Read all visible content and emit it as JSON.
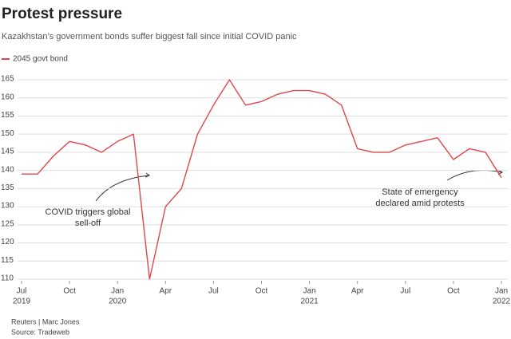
{
  "chart_data": {
    "type": "line",
    "title": "Protest pressure",
    "subtitle": "Kazakhstan’s government bonds suffer biggest fall since initial COVID panic",
    "x": [
      "2019-07",
      "2019-08",
      "2019-09",
      "2019-10",
      "2019-11",
      "2019-12",
      "2020-01",
      "2020-02",
      "2020-03",
      "2020-04",
      "2020-05",
      "2020-06",
      "2020-07",
      "2020-08",
      "2020-09",
      "2020-10",
      "2020-11",
      "2020-12",
      "2021-01",
      "2021-02",
      "2021-03",
      "2021-04",
      "2021-05",
      "2021-06",
      "2021-07",
      "2021-08",
      "2021-09",
      "2021-10",
      "2021-11",
      "2021-12",
      "2022-01"
    ],
    "series": [
      {
        "name": "2045 govt bond",
        "color": "#e0474c",
        "values": [
          139,
          139,
          144,
          148,
          147,
          145,
          148,
          150,
          110,
          130,
          135,
          150,
          158,
          165,
          158,
          159,
          161,
          162,
          162,
          161,
          158,
          146,
          145,
          145,
          147,
          148,
          149,
          143,
          146,
          145,
          138
        ]
      }
    ],
    "xlim": [
      "2019-07",
      "2022-01"
    ],
    "xticks": [
      {
        "value": "2019-07",
        "label": "Jul"
      },
      {
        "value": "2019-10",
        "label": "Oct"
      },
      {
        "value": "2020-01",
        "label": "Jan"
      },
      {
        "value": "2020-04",
        "label": "Apr"
      },
      {
        "value": "2020-07",
        "label": "Jul"
      },
      {
        "value": "2020-10",
        "label": "Oct"
      },
      {
        "value": "2021-01",
        "label": "Jan"
      },
      {
        "value": "2021-04",
        "label": "Apr"
      },
      {
        "value": "2021-07",
        "label": "Jul"
      },
      {
        "value": "2021-10",
        "label": "Oct"
      },
      {
        "value": "2022-01",
        "label": "Jan"
      }
    ],
    "year_labels": [
      {
        "value": "2019-07",
        "label": "2019"
      },
      {
        "value": "2020-01",
        "label": "2020"
      },
      {
        "value": "2021-01",
        "label": "2021"
      },
      {
        "value": "2022-01",
        "label": "2022"
      }
    ],
    "ylim": [
      110,
      165
    ],
    "yticks": [
      110,
      115,
      120,
      125,
      130,
      135,
      140,
      145,
      150,
      155,
      160,
      165
    ],
    "grid": true,
    "annotations": [
      {
        "lines": [
          "COVID triggers global",
          "sell-off"
        ]
      },
      {
        "lines": [
          "State of emergency",
          "declared amid protests"
        ]
      }
    ],
    "credit": "Reuters | Marc Jones",
    "source": "Source: Tradeweb"
  }
}
